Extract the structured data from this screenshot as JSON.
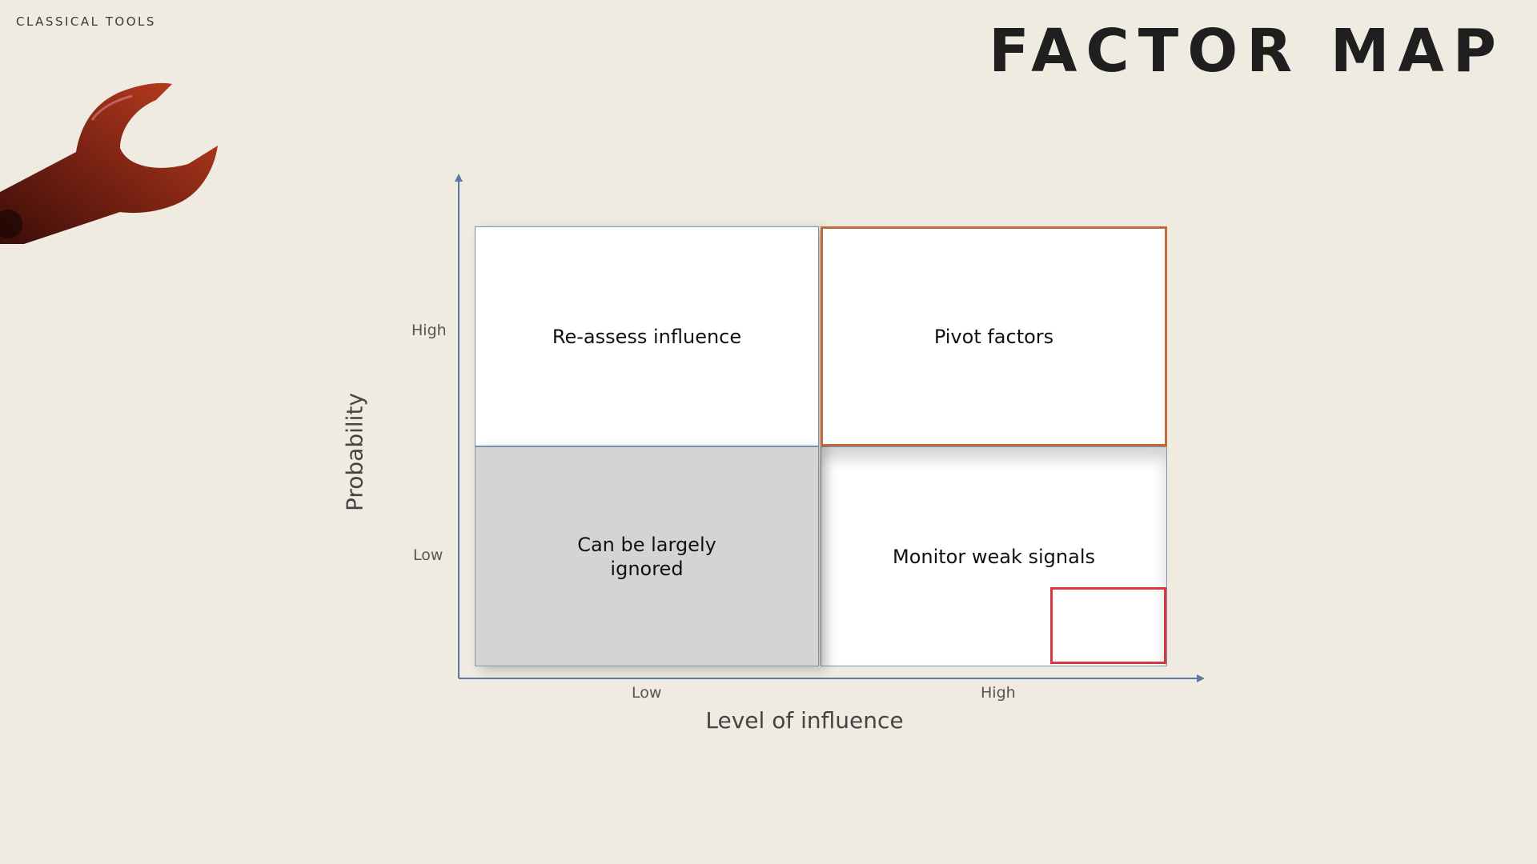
{
  "header": {
    "section_label": "CLASSICAL TOOLS",
    "title": "FACTOR MAP"
  },
  "decoration": {
    "wrench_icon": "wrench-icon",
    "wrench_color": "#8a2a1a"
  },
  "matrix": {
    "y_axis": {
      "label": "Probability",
      "ticks": [
        "High",
        "Low"
      ]
    },
    "x_axis": {
      "label": "Level of influence",
      "ticks": [
        "Low",
        "High"
      ]
    },
    "quadrants": {
      "top_left": "Re-assess influence",
      "top_right": "Pivot factors",
      "bottom_left": "Can be largely ignored",
      "bottom_right": "Monitor weak signals"
    },
    "colors": {
      "axis": "#5b78a8",
      "pivot_border": "#c06a3a",
      "highlight_border": "#d7383d",
      "ignored_fill": "#d4d4d4"
    }
  }
}
